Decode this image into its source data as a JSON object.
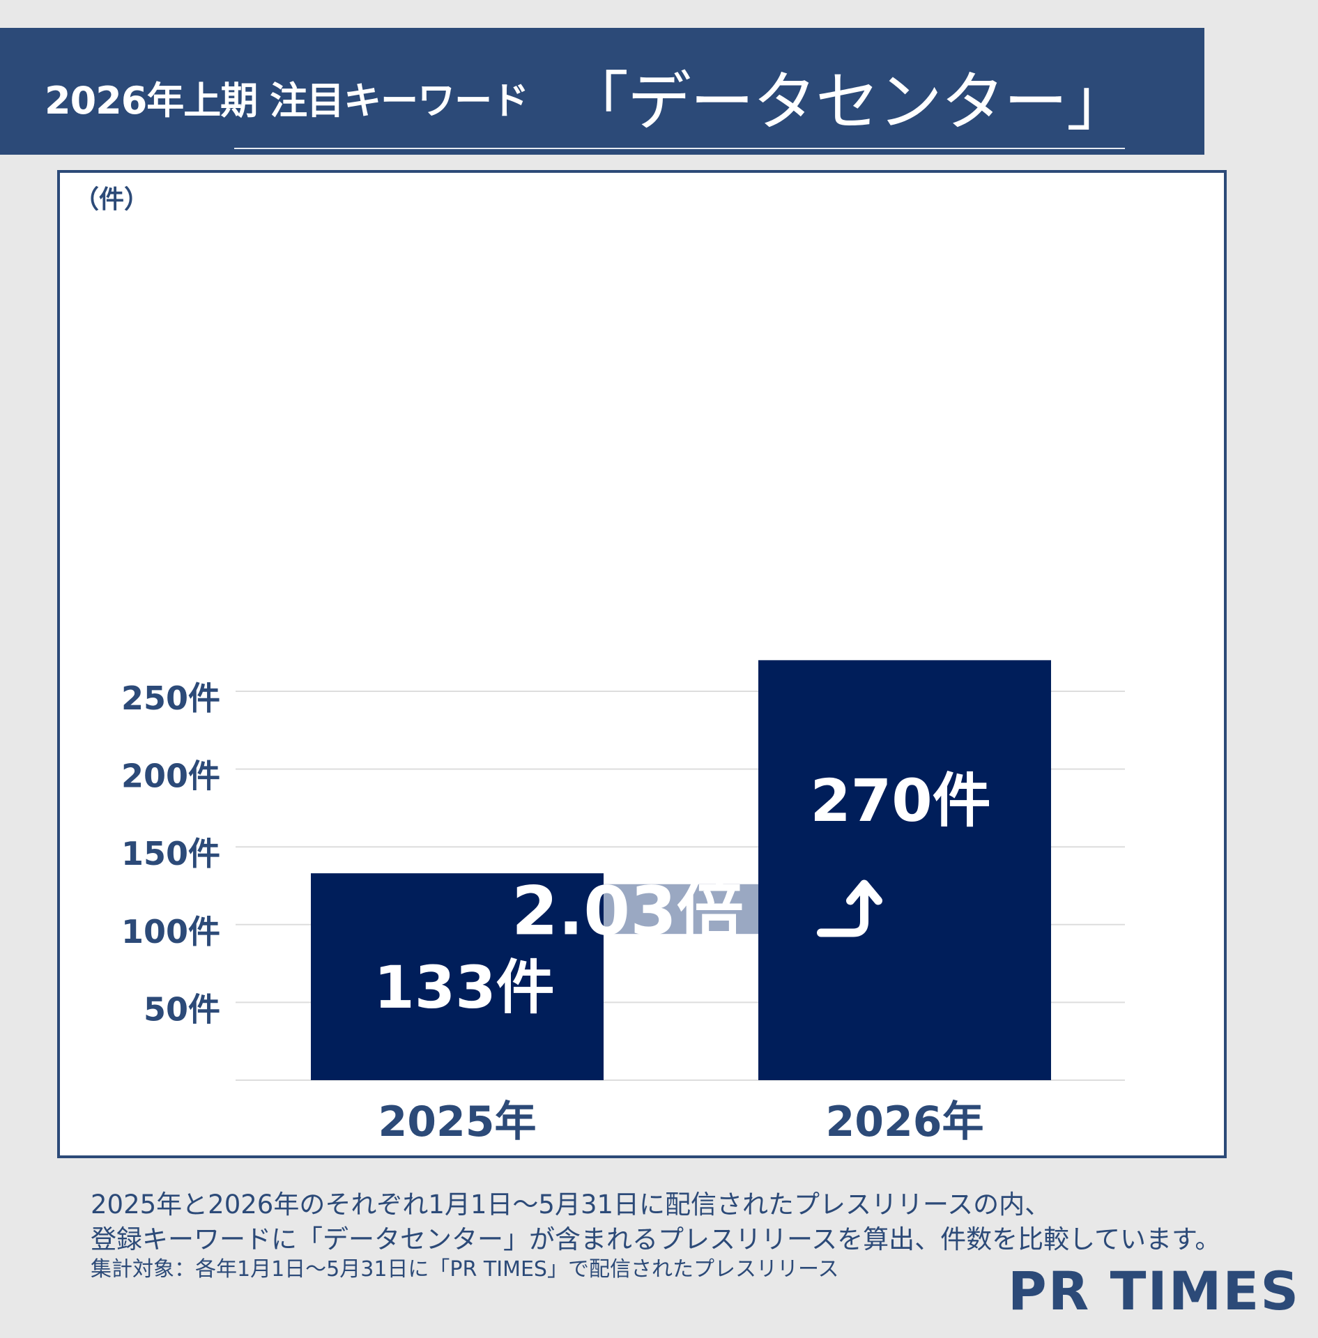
{
  "header": {
    "title_prefix": "2026年上期 注目キーワード",
    "title_keyword": "「データセンター」"
  },
  "chart_data": {
    "type": "bar",
    "unit_label": "（件）",
    "categories": [
      "2025年",
      "2026年"
    ],
    "values": [
      133,
      270
    ],
    "data_labels": [
      "133件",
      "270件"
    ],
    "y_ticks": [
      50,
      100,
      150,
      200,
      250
    ],
    "y_tick_labels": [
      "50件",
      "100件",
      "150件",
      "200件",
      "250件"
    ],
    "ylim": [
      0,
      280
    ],
    "grid": true,
    "annotation": "2.03倍",
    "colors": {
      "bar": "#001e5a",
      "axis_text": "#2c4a78",
      "grid": "#dddddd",
      "annotation_band": "#9aa8c2"
    }
  },
  "footnotes": {
    "line1": "2025年と2026年のそれぞれ1月1日～5月31日に配信されたプレスリリースの内、",
    "line2": "登録キーワードに「データセンター」が含まれるプレスリリースを算出、件数を比較しています。",
    "line3": "集計対象：各年1月1日～5月31日に「PR TIMES」で配信されたプレスリリース"
  },
  "logo": "PR TIMES",
  "colors": {
    "header_bg": "#2c4a78",
    "page_bg": "#e8e8e8"
  }
}
